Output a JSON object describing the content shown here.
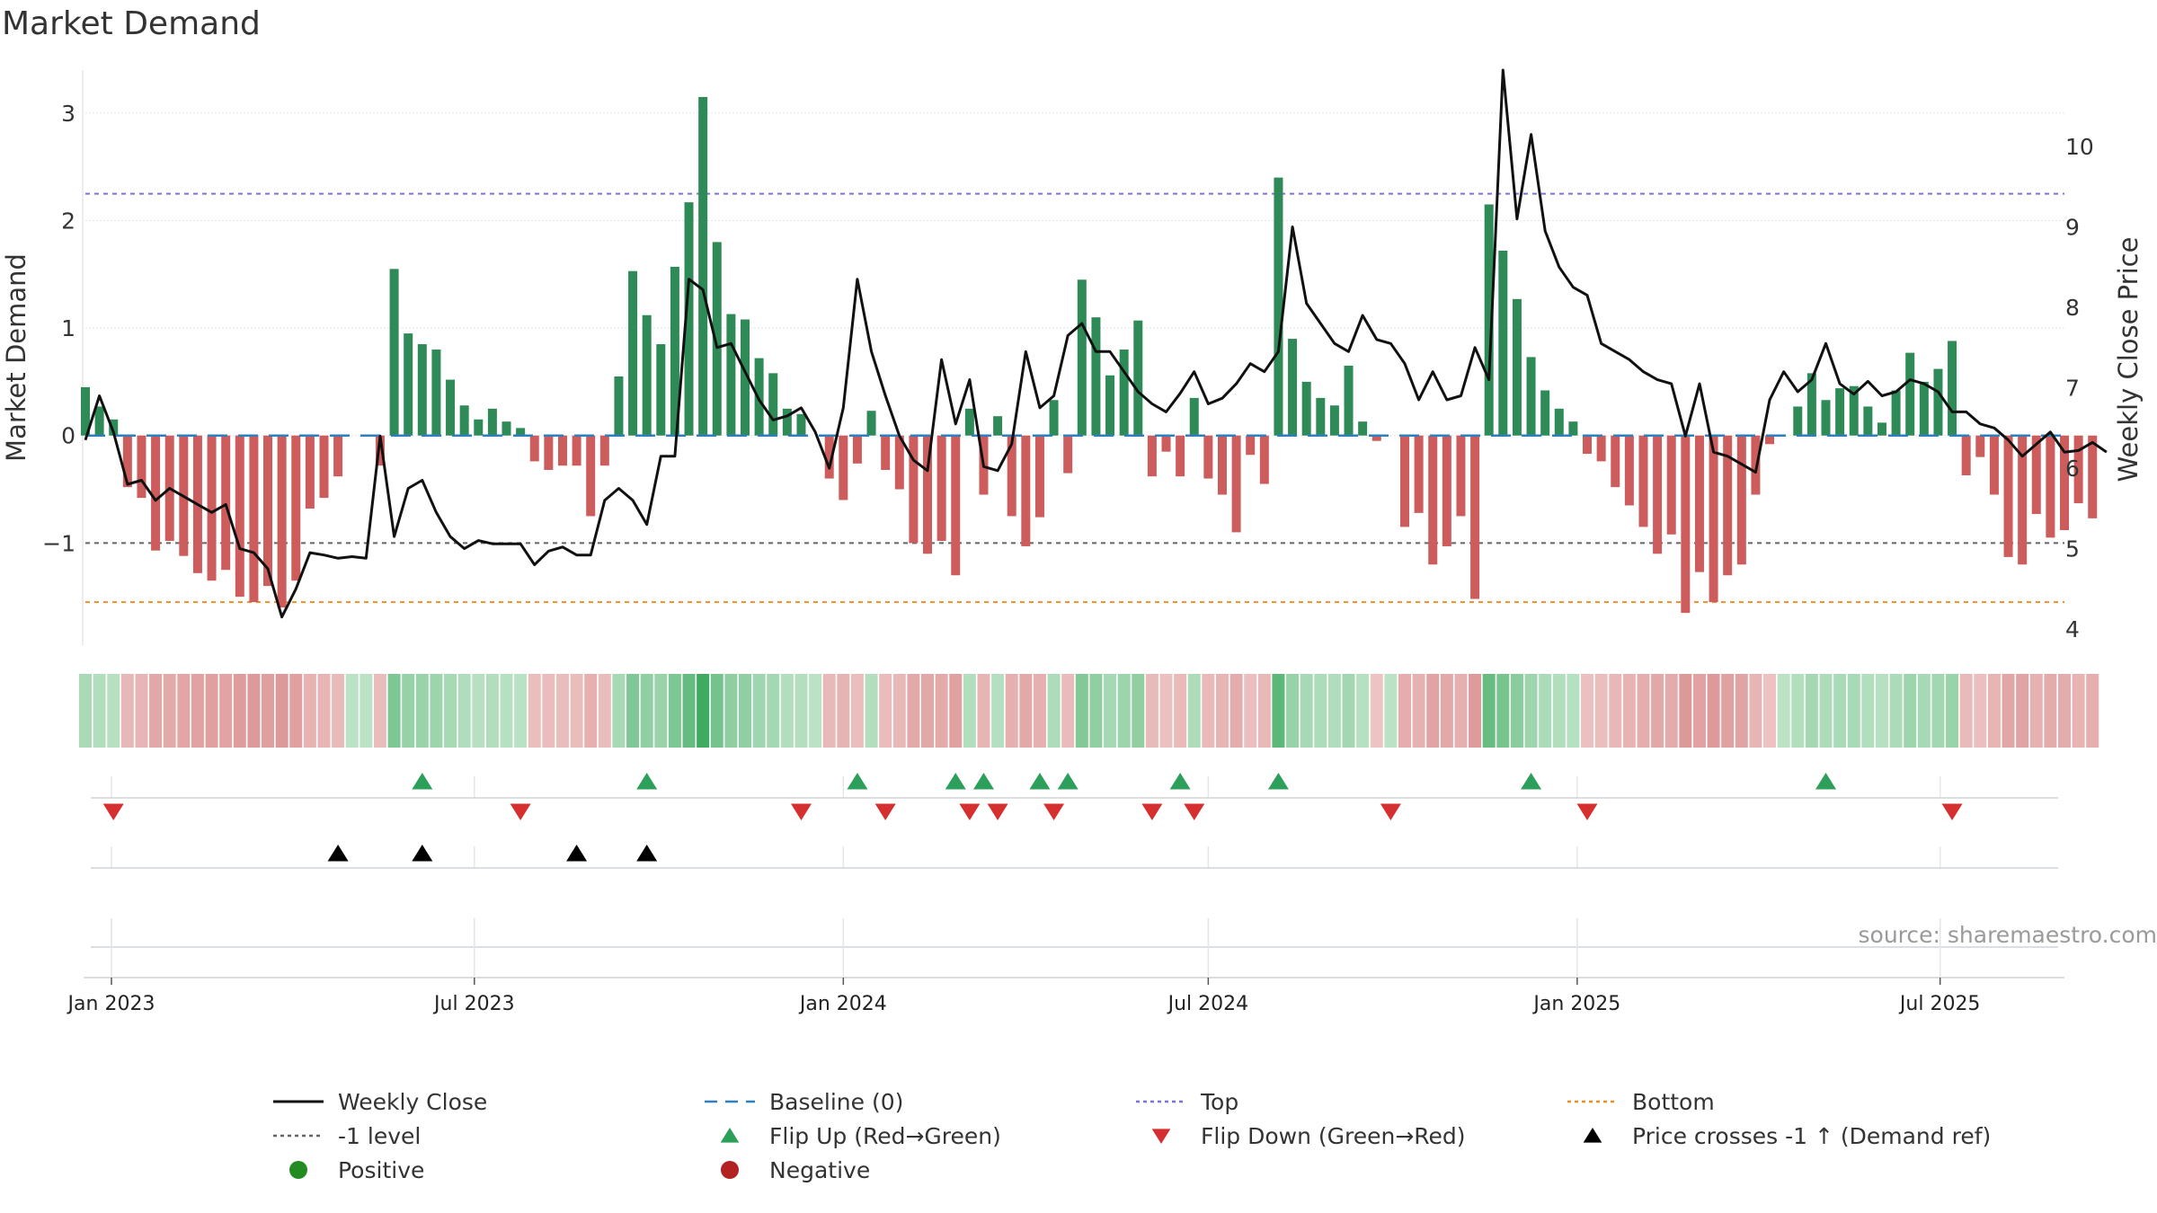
{
  "chart_data": {
    "type": "bar",
    "title": "Market Demand",
    "ylabel_left": "Market Demand",
    "ylabel_right": "Weekly Close Price",
    "left_ylim": [
      -1.95,
      3.4
    ],
    "left_ticks": [
      {
        "v": 3,
        "label": "3"
      },
      {
        "v": 2,
        "label": "2"
      },
      {
        "v": 1,
        "label": "1"
      },
      {
        "v": 0,
        "label": "0"
      },
      {
        "v": -1,
        "label": "−1"
      }
    ],
    "right_ylim": [
      3.8,
      10.95
    ],
    "right_ticks": [
      {
        "v": 4,
        "label": "4"
      },
      {
        "v": 5,
        "label": "5"
      },
      {
        "v": 6,
        "label": "6"
      },
      {
        "v": 7,
        "label": "7"
      },
      {
        "v": 8,
        "label": "8"
      },
      {
        "v": 9,
        "label": "9"
      },
      {
        "v": 10,
        "label": "10"
      }
    ],
    "x_start": "2022-12-19",
    "x_end": "2025-09-01",
    "x_ticks": [
      {
        "date": "2023-01-01",
        "label": "Jan 2023"
      },
      {
        "date": "2023-07-01",
        "label": "Jul 2023"
      },
      {
        "date": "2024-01-01",
        "label": "Jan 2024"
      },
      {
        "date": "2024-07-01",
        "label": "Jul 2024"
      },
      {
        "date": "2025-01-01",
        "label": "Jan 2025"
      },
      {
        "date": "2025-07-01",
        "label": "Jul 2025"
      }
    ],
    "first_week": "2022-12-19",
    "demand": [
      0.45,
      0.27,
      0.15,
      -0.48,
      -0.58,
      -1.07,
      -0.98,
      -1.12,
      -1.28,
      -1.35,
      -1.25,
      -1.5,
      -1.55,
      -1.4,
      -1.6,
      -1.35,
      -0.68,
      -0.58,
      -0.38,
      0,
      0,
      -0.28,
      1.55,
      0.95,
      0.85,
      0.8,
      0.52,
      0.28,
      0.15,
      0.25,
      0.13,
      0.07,
      -0.24,
      -0.32,
      -0.28,
      -0.28,
      -0.75,
      -0.28,
      0.55,
      1.53,
      1.12,
      0.85,
      1.57,
      2.17,
      3.15,
      1.8,
      1.13,
      1.08,
      0.72,
      0.58,
      0.25,
      0.2,
      0,
      -0.4,
      -0.6,
      -0.26,
      0.23,
      -0.32,
      -0.5,
      -1.0,
      -1.1,
      -0.98,
      -1.3,
      0.25,
      -0.55,
      0.18,
      -0.75,
      -1.03,
      -0.76,
      0.33,
      -0.35,
      1.45,
      1.1,
      0.56,
      0.8,
      1.07,
      -0.38,
      -0.15,
      -0.38,
      0.35,
      -0.4,
      -0.55,
      -0.9,
      -0.18,
      -0.45,
      2.4,
      0.9,
      0.5,
      0.35,
      0.28,
      0.65,
      0.13,
      -0.05,
      0,
      -0.85,
      -0.72,
      -1.2,
      -1.03,
      -0.75,
      -1.52,
      2.15,
      1.72,
      1.27,
      0.73,
      0.42,
      0.25,
      0.13,
      -0.17,
      -0.24,
      -0.48,
      -0.65,
      -0.85,
      -1.1,
      -0.92,
      -1.65,
      -1.27,
      -1.55,
      -1.3,
      -1.2,
      -0.55,
      -0.08,
      0,
      0.27,
      0.58,
      0.33,
      0.44,
      0.46,
      0.27,
      0.12,
      0.42,
      0.77,
      0.5,
      0.62,
      0.88,
      -0.37,
      -0.2,
      -0.55,
      -1.13,
      -1.2,
      -0.73,
      -0.95,
      -0.88,
      -0.63,
      -0.77
    ],
    "weekly_close": [
      6.35,
      6.9,
      6.45,
      5.8,
      5.85,
      5.6,
      5.75,
      5.65,
      5.55,
      5.45,
      5.55,
      5.0,
      4.95,
      4.75,
      4.15,
      4.5,
      4.95,
      4.92,
      4.88,
      4.9,
      4.88,
      6.4,
      5.15,
      5.75,
      5.85,
      5.45,
      5.15,
      5.0,
      5.1,
      5.06,
      5.06,
      5.06,
      4.8,
      4.97,
      5.02,
      4.92,
      4.92,
      5.6,
      5.75,
      5.6,
      5.3,
      6.15,
      6.15,
      8.35,
      8.22,
      7.5,
      7.55,
      7.2,
      6.85,
      6.6,
      6.65,
      6.75,
      6.45,
      6.0,
      6.75,
      8.35,
      7.45,
      6.9,
      6.4,
      6.1,
      5.97,
      7.35,
      6.55,
      7.1,
      6.02,
      5.97,
      6.3,
      7.45,
      6.75,
      6.9,
      7.65,
      7.8,
      7.45,
      7.45,
      7.2,
      6.95,
      6.8,
      6.7,
      6.93,
      7.2,
      6.8,
      6.87,
      7.05,
      7.3,
      7.2,
      7.45,
      9.0,
      8.05,
      7.8,
      7.55,
      7.45,
      7.9,
      7.6,
      7.55,
      7.3,
      6.85,
      7.2,
      6.85,
      6.9,
      7.5,
      7.1,
      10.95,
      9.1,
      10.15,
      8.95,
      8.5,
      8.25,
      8.15,
      7.55,
      7.45,
      7.35,
      7.2,
      7.1,
      7.05,
      6.4,
      7.05,
      6.2,
      6.15,
      6.05,
      5.95,
      6.85,
      7.2,
      6.95,
      7.1,
      7.55,
      7.05,
      6.92,
      7.08,
      6.9,
      6.95,
      7.1,
      7.05,
      6.95,
      6.7,
      6.7,
      6.55,
      6.5,
      6.35,
      6.15,
      6.3,
      6.45,
      6.2,
      6.22,
      6.32,
      6.2
    ],
    "reference_lines": [
      {
        "name": "Top",
        "value": 2.25,
        "axis": "left",
        "color": "#7b73d6",
        "style": "dotted"
      },
      {
        "name": "-1 level",
        "value": -1,
        "axis": "left",
        "color": "#666666",
        "style": "dotted"
      },
      {
        "name": "Bottom",
        "value": -1.55,
        "axis": "left",
        "color": "#e8912a",
        "style": "dotted"
      },
      {
        "name": "Baseline (0)",
        "value": 0,
        "axis": "left",
        "color": "#2f7fbf",
        "style": "dashed"
      }
    ],
    "flip_up_dates": [
      "2023-06-05",
      "2023-09-25",
      "2024-01-08",
      "2024-02-26",
      "2024-03-11",
      "2024-04-08",
      "2024-04-22",
      "2024-06-17",
      "2024-08-05",
      "2024-12-09",
      "2025-05-05"
    ],
    "flip_down_dates": [
      "2023-01-02",
      "2023-07-24",
      "2023-12-11",
      "2024-01-22",
      "2024-03-04",
      "2024-03-18",
      "2024-04-15",
      "2024-06-03",
      "2024-06-24",
      "2024-09-30",
      "2025-01-06",
      "2025-07-07"
    ],
    "price_cross_dates": [
      "2023-04-24",
      "2023-06-05",
      "2023-08-21",
      "2023-09-25"
    ],
    "colors": {
      "positive": "#2e8b57",
      "negative": "#cd5c5c",
      "close_line": "#111111",
      "flip_up": "#2ca05a",
      "flip_down": "#d62f2f",
      "price_cross": "#000000",
      "legend_positive": "#228b22",
      "legend_negative": "#b22222"
    }
  },
  "legend": {
    "items": [
      {
        "label": "Weekly Close",
        "swatch": "line-solid",
        "color": "#111111"
      },
      {
        "label": "Baseline (0)",
        "swatch": "line-dashed",
        "color": "#2f7fbf"
      },
      {
        "label": "Top",
        "swatch": "line-dotted",
        "color": "#7b73d6"
      },
      {
        "label": "Bottom",
        "swatch": "line-dotted",
        "color": "#e8912a"
      },
      {
        "label": "-1 level",
        "swatch": "line-dotted",
        "color": "#666666"
      },
      {
        "label": "Flip Up (Red→Green)",
        "swatch": "triangle-up",
        "color": "#2ca05a"
      },
      {
        "label": "Flip Down (Green→Red)",
        "swatch": "triangle-down",
        "color": "#d62f2f"
      },
      {
        "label": "Price crosses -1 ↑ (Demand ref)",
        "swatch": "triangle-up",
        "color": "#000000"
      },
      {
        "label": "Positive",
        "swatch": "dot",
        "color": "#228b22"
      },
      {
        "label": "Negative",
        "swatch": "dot",
        "color": "#b22222"
      }
    ]
  },
  "source": "source: sharemaestro.com"
}
